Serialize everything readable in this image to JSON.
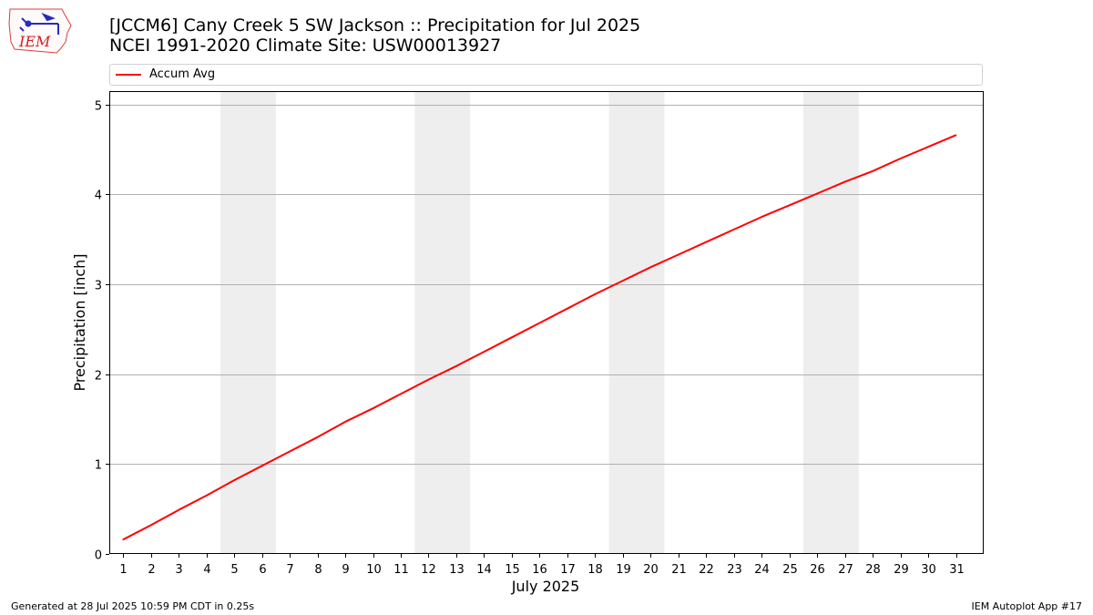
{
  "header": {
    "title_line1": "[JCCM6] Cany Creek 5 SW Jackson :: Precipitation for Jul 2025",
    "title_line2": "NCEI 1991-2020 Climate Site: USW00013927"
  },
  "logo": {
    "text": "IEM",
    "icon": "iem-iowa-weather-logo"
  },
  "footer": {
    "left": "Generated at 28 Jul 2025 10:59 PM CDT in 0.25s",
    "right": "IEM Autoplot App #17"
  },
  "colors": {
    "series": "#ff0000",
    "weekend_band": "#eeeeee",
    "grid": "#b0b0b0"
  },
  "chart_data": {
    "type": "line",
    "xlabel": "July 2025",
    "ylabel": "Precipitation [inch]",
    "xlim": [
      0.5,
      32
    ],
    "ylim": [
      0,
      5.15
    ],
    "yticks": [
      0,
      1,
      2,
      3,
      4,
      5
    ],
    "xticks": [
      1,
      2,
      3,
      4,
      5,
      6,
      7,
      8,
      9,
      10,
      11,
      12,
      13,
      14,
      15,
      16,
      17,
      18,
      19,
      20,
      21,
      22,
      23,
      24,
      25,
      26,
      27,
      28,
      29,
      30,
      31
    ],
    "grid": "horizontal",
    "legend_position": "top",
    "shaded_x_ranges": [
      [
        4.5,
        6.5
      ],
      [
        11.5,
        13.5
      ],
      [
        18.5,
        20.5
      ],
      [
        25.5,
        27.5
      ]
    ],
    "series": [
      {
        "name": "Accum Avg",
        "color": "#ff0000",
        "x": [
          1,
          2,
          3,
          4,
          5,
          6,
          7,
          8,
          9,
          10,
          11,
          12,
          13,
          14,
          15,
          16,
          17,
          18,
          19,
          20,
          21,
          22,
          23,
          24,
          25,
          26,
          27,
          28,
          29,
          30,
          31
        ],
        "values": [
          0.16,
          0.32,
          0.49,
          0.65,
          0.82,
          0.98,
          1.14,
          1.3,
          1.47,
          1.62,
          1.78,
          1.94,
          2.09,
          2.25,
          2.41,
          2.57,
          2.73,
          2.89,
          3.04,
          3.19,
          3.33,
          3.47,
          3.61,
          3.75,
          3.88,
          4.01,
          4.14,
          4.26,
          4.4,
          4.53,
          4.66
        ]
      }
    ]
  }
}
